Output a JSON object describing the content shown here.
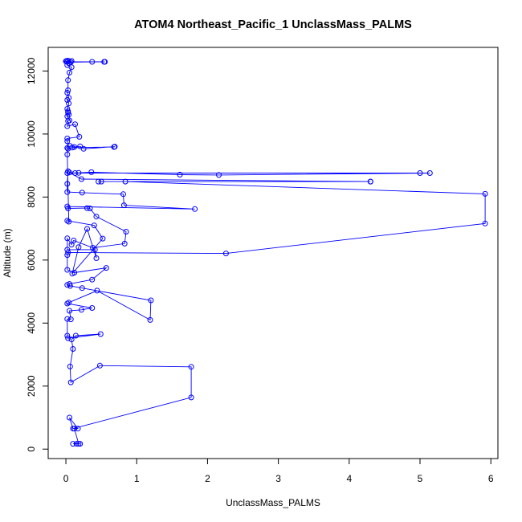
{
  "chart_data": {
    "type": "line",
    "title": "ATOM4 Northeast_Pacific_1 UnclassMass_PALMS",
    "xlabel": "UnclassMass_PALMS",
    "ylabel": "Altitude (m)",
    "xlim": [
      -0.25,
      6.1
    ],
    "ylim": [
      -300,
      12750
    ],
    "xticks": [
      0,
      1,
      2,
      3,
      4,
      5,
      6
    ],
    "yticks": [
      0,
      2000,
      4000,
      6000,
      8000,
      10000,
      12000
    ],
    "grid": false,
    "legend": "none",
    "series_color": "#0000ff",
    "series": [
      {
        "values": [
          [
            0.1,
            170
          ],
          [
            0.15,
            170
          ],
          [
            0.2,
            170
          ],
          [
            0.18,
            170
          ],
          [
            0.12,
            650
          ],
          [
            0.17,
            650
          ],
          [
            0.05,
            1000
          ],
          [
            0.1,
            650
          ],
          [
            1.77,
            1640
          ],
          [
            1.77,
            2610
          ],
          [
            0.48,
            2650
          ],
          [
            0.07,
            2120
          ],
          [
            0.06,
            2620
          ],
          [
            0.1,
            3180
          ],
          [
            0.08,
            3480
          ],
          [
            0.14,
            3600
          ],
          [
            0.49,
            3650
          ],
          [
            0.03,
            3520
          ],
          [
            0.02,
            3600
          ],
          [
            0.02,
            4130
          ],
          [
            0.07,
            4120
          ],
          [
            0.05,
            4390
          ],
          [
            0.22,
            4420
          ],
          [
            0.37,
            4480
          ],
          [
            0.02,
            4620
          ],
          [
            0.04,
            4650
          ],
          [
            0.44,
            5030
          ],
          [
            1.19,
            4100
          ],
          [
            1.2,
            4720
          ],
          [
            0.23,
            5110
          ],
          [
            0.06,
            5180
          ],
          [
            0.02,
            5210
          ],
          [
            0.05,
            5240
          ],
          [
            0.37,
            5380
          ],
          [
            0.57,
            5750
          ],
          [
            0.12,
            5600
          ],
          [
            0.02,
            5690
          ],
          [
            0.02,
            6160
          ],
          [
            0.03,
            6240
          ],
          [
            2.26,
            6210
          ],
          [
            5.92,
            7160
          ],
          [
            5.92,
            8100
          ],
          [
            0.84,
            8490
          ],
          [
            0.5,
            8490
          ],
          [
            0.46,
            8490
          ],
          [
            4.3,
            8490
          ],
          [
            4.3,
            8490
          ],
          [
            0.22,
            8570
          ],
          [
            0.05,
            8780
          ],
          [
            0.13,
            8760
          ],
          [
            5.0,
            8760
          ],
          [
            5.14,
            8760
          ],
          [
            2.16,
            8700
          ],
          [
            1.61,
            8710
          ],
          [
            0.36,
            8790
          ],
          [
            0.18,
            8770
          ],
          [
            0.02,
            8760
          ],
          [
            0.03,
            8820
          ],
          [
            0.02,
            8420
          ],
          [
            0.02,
            8160
          ],
          [
            0.23,
            8140
          ],
          [
            0.81,
            8090
          ],
          [
            0.82,
            7740
          ],
          [
            1.82,
            7620
          ],
          [
            0.02,
            7700
          ],
          [
            0.03,
            7640
          ],
          [
            0.3,
            7650
          ],
          [
            0.34,
            7640
          ],
          [
            0.43,
            7380
          ],
          [
            0.85,
            6900
          ],
          [
            0.83,
            6520
          ],
          [
            0.38,
            6390
          ],
          [
            0.11,
            6620
          ],
          [
            0.08,
            6490
          ],
          [
            0.02,
            6690
          ],
          [
            0.02,
            6330
          ],
          [
            0.41,
            6330
          ],
          [
            0.43,
            6060
          ],
          [
            0.3,
            6990
          ],
          [
            0.18,
            6410
          ],
          [
            0.09,
            5570
          ],
          [
            0.52,
            6680
          ],
          [
            0.4,
            7100
          ],
          [
            0.02,
            7250
          ],
          [
            0.04,
            7220
          ],
          [
            0.02,
            9350
          ],
          [
            0.02,
            9560
          ],
          [
            0.06,
            9620
          ],
          [
            0.12,
            9590
          ],
          [
            0.2,
            9610
          ],
          [
            0.25,
            9530
          ],
          [
            0.69,
            9600
          ],
          [
            0.68,
            9590
          ],
          [
            0.09,
            9570
          ],
          [
            0.03,
            9530
          ],
          [
            0.02,
            9770
          ],
          [
            0.02,
            9860
          ],
          [
            0.19,
            9910
          ],
          [
            0.13,
            10310
          ],
          [
            0.02,
            10250
          ],
          [
            0.03,
            10410
          ],
          [
            0.05,
            10430
          ],
          [
            0.02,
            10560
          ],
          [
            0.04,
            10620
          ],
          [
            0.03,
            10680
          ],
          [
            0.03,
            10720
          ],
          [
            0.02,
            10800
          ],
          [
            0.04,
            10970
          ],
          [
            0.02,
            11080
          ],
          [
            0.04,
            11150
          ],
          [
            0.02,
            11310
          ],
          [
            0.03,
            11390
          ],
          [
            0.03,
            11710
          ],
          [
            0.05,
            11950
          ],
          [
            0.08,
            12120
          ],
          [
            0.02,
            12190
          ],
          [
            0.04,
            12250
          ],
          [
            0.07,
            12280
          ],
          [
            0.37,
            12290
          ],
          [
            0.55,
            12290
          ],
          [
            0.54,
            12290
          ],
          [
            0.02,
            12290
          ],
          [
            0.0,
            12310
          ],
          [
            0.08,
            12320
          ],
          [
            0.03,
            12330
          ],
          [
            0.01,
            12320
          ]
        ]
      }
    ]
  }
}
